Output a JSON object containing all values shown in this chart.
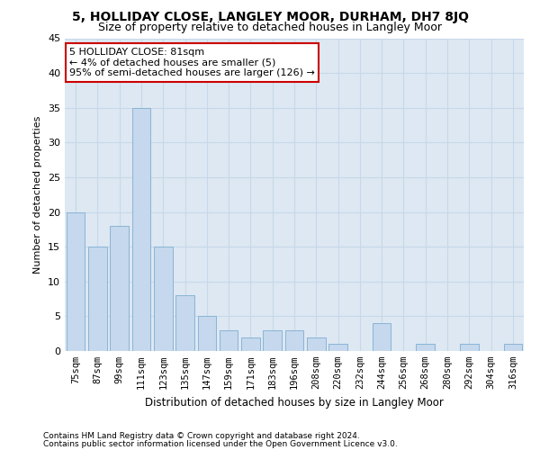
{
  "title": "5, HOLLIDAY CLOSE, LANGLEY MOOR, DURHAM, DH7 8JQ",
  "subtitle": "Size of property relative to detached houses in Langley Moor",
  "xlabel": "Distribution of detached houses by size in Langley Moor",
  "ylabel": "Number of detached properties",
  "footnote1": "Contains HM Land Registry data © Crown copyright and database right 2024.",
  "footnote2": "Contains public sector information licensed under the Open Government Licence v3.0.",
  "categories": [
    "75sqm",
    "87sqm",
    "99sqm",
    "111sqm",
    "123sqm",
    "135sqm",
    "147sqm",
    "159sqm",
    "171sqm",
    "183sqm",
    "196sqm",
    "208sqm",
    "220sqm",
    "232sqm",
    "244sqm",
    "256sqm",
    "268sqm",
    "280sqm",
    "292sqm",
    "304sqm",
    "316sqm"
  ],
  "values": [
    20,
    15,
    18,
    35,
    15,
    8,
    5,
    3,
    2,
    3,
    3,
    2,
    1,
    0,
    4,
    0,
    1,
    0,
    1,
    0,
    1
  ],
  "bar_color": "#c5d8ed",
  "bar_edgecolor": "#8ab4d4",
  "highlight_edgecolor": "#cc0000",
  "annotation_line1": "5 HOLLIDAY CLOSE: 81sqm",
  "annotation_line2": "← 4% of detached houses are smaller (5)",
  "annotation_line3": "95% of semi-detached houses are larger (126) →",
  "annotation_box_edgecolor": "#cc0000",
  "annotation_box_facecolor": "white",
  "ylim": [
    0,
    45
  ],
  "yticks": [
    0,
    5,
    10,
    15,
    20,
    25,
    30,
    35,
    40,
    45
  ],
  "grid_color": "#c8d8e8",
  "bg_color": "#dde8f3",
  "title_fontsize": 10,
  "subtitle_fontsize": 9,
  "xlabel_fontsize": 8.5,
  "ylabel_fontsize": 8,
  "footnote_fontsize": 6.5,
  "tick_fontsize": 7.5,
  "ytick_fontsize": 8,
  "annot_fontsize": 8
}
